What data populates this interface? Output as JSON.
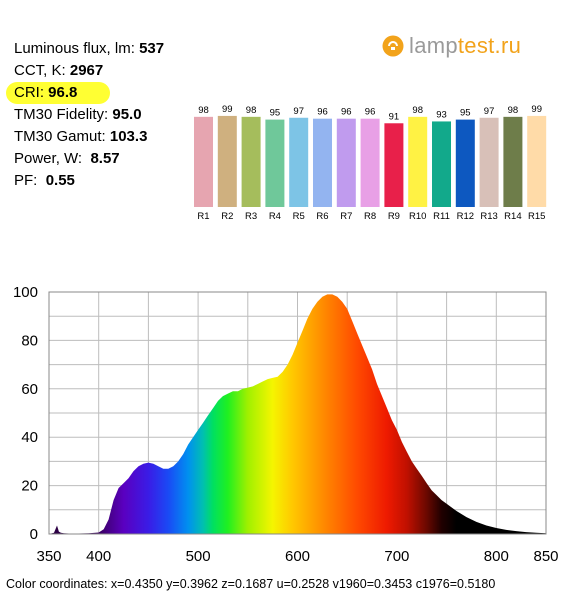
{
  "stats": {
    "flux_label": "Luminous flux, lm:",
    "flux_value": "537",
    "cct_label": "CCT, K:",
    "cct_value": "2967",
    "cri_label": "CRI:",
    "cri_value": "96.8",
    "fidelity_label": "TM30 Fidelity:",
    "fidelity_value": "95.0",
    "gamut_label": "TM30 Gamut:",
    "gamut_value": "103.3",
    "power_label": "Power, W:",
    "power_value": "8.57",
    "pf_label": "PF:",
    "pf_value": "0.55"
  },
  "logo": {
    "text_a": "lamp",
    "text_b": "test.ru",
    "icon": "bulb-icon",
    "accent": "#f2a31b"
  },
  "footer": "Color coordinates: x=0.4350 y=0.3962 z=0.1687 u=0.2528 v1960=0.3453 c1976=0.5180",
  "chart_data": [
    {
      "type": "bar",
      "categories": [
        "R1",
        "R2",
        "R3",
        "R4",
        "R5",
        "R6",
        "R7",
        "R8",
        "R9",
        "R10",
        "R11",
        "R12",
        "R13",
        "R14",
        "R15"
      ],
      "values": [
        98,
        99,
        98,
        95,
        97,
        96,
        96,
        96,
        91,
        98,
        93,
        95,
        97,
        98,
        99
      ],
      "colors": [
        "#e6a5b0",
        "#cfb07f",
        "#a5bd5c",
        "#6fc89a",
        "#7dc4e6",
        "#93b4f0",
        "#c09bee",
        "#e8a0e6",
        "#e8204a",
        "#fff244",
        "#12a98b",
        "#0d58c0",
        "#d8c0b8",
        "#6e7d4a",
        "#ffdba8"
      ]
    },
    {
      "type": "area",
      "x_ticks": [
        350,
        400,
        500,
        600,
        700,
        800,
        850
      ],
      "y_ticks": [
        0,
        20,
        40,
        60,
        80,
        100
      ],
      "xlim": [
        350,
        850
      ],
      "ylim": [
        0,
        100
      ],
      "grid": true,
      "x": [
        350,
        355,
        358,
        360,
        362,
        365,
        370,
        380,
        390,
        400,
        405,
        410,
        415,
        420,
        425,
        430,
        435,
        440,
        445,
        450,
        455,
        460,
        465,
        470,
        475,
        480,
        485,
        490,
        495,
        500,
        505,
        510,
        515,
        520,
        525,
        530,
        535,
        540,
        545,
        550,
        555,
        560,
        565,
        570,
        575,
        580,
        585,
        590,
        595,
        600,
        605,
        610,
        615,
        620,
        625,
        630,
        635,
        640,
        645,
        650,
        655,
        660,
        665,
        670,
        675,
        680,
        685,
        690,
        695,
        700,
        705,
        710,
        715,
        720,
        725,
        730,
        735,
        740,
        745,
        750,
        760,
        770,
        780,
        790,
        800,
        810,
        820,
        830,
        840,
        850
      ],
      "y": [
        0,
        0.5,
        3.5,
        1,
        0.5,
        0.3,
        0.2,
        0.2,
        0.3,
        0.6,
        2,
        6,
        14,
        19,
        21,
        23,
        26,
        28,
        29,
        29.5,
        29,
        28,
        27,
        27,
        28,
        30,
        33,
        37,
        40,
        43,
        46,
        49,
        52,
        55,
        57,
        58,
        59,
        59,
        60,
        60.5,
        61,
        62,
        63,
        64,
        64.5,
        65,
        67,
        70,
        74,
        79,
        84,
        89,
        93,
        96,
        98,
        99,
        99,
        98,
        96,
        93,
        88,
        83,
        78,
        73,
        68,
        62,
        57,
        52,
        47,
        43,
        38,
        34,
        30,
        27,
        24,
        21,
        18,
        16,
        14,
        12.5,
        9.5,
        7,
        5,
        3.5,
        2.5,
        1.7,
        1.2,
        0.8,
        0.5,
        0.3
      ]
    }
  ]
}
